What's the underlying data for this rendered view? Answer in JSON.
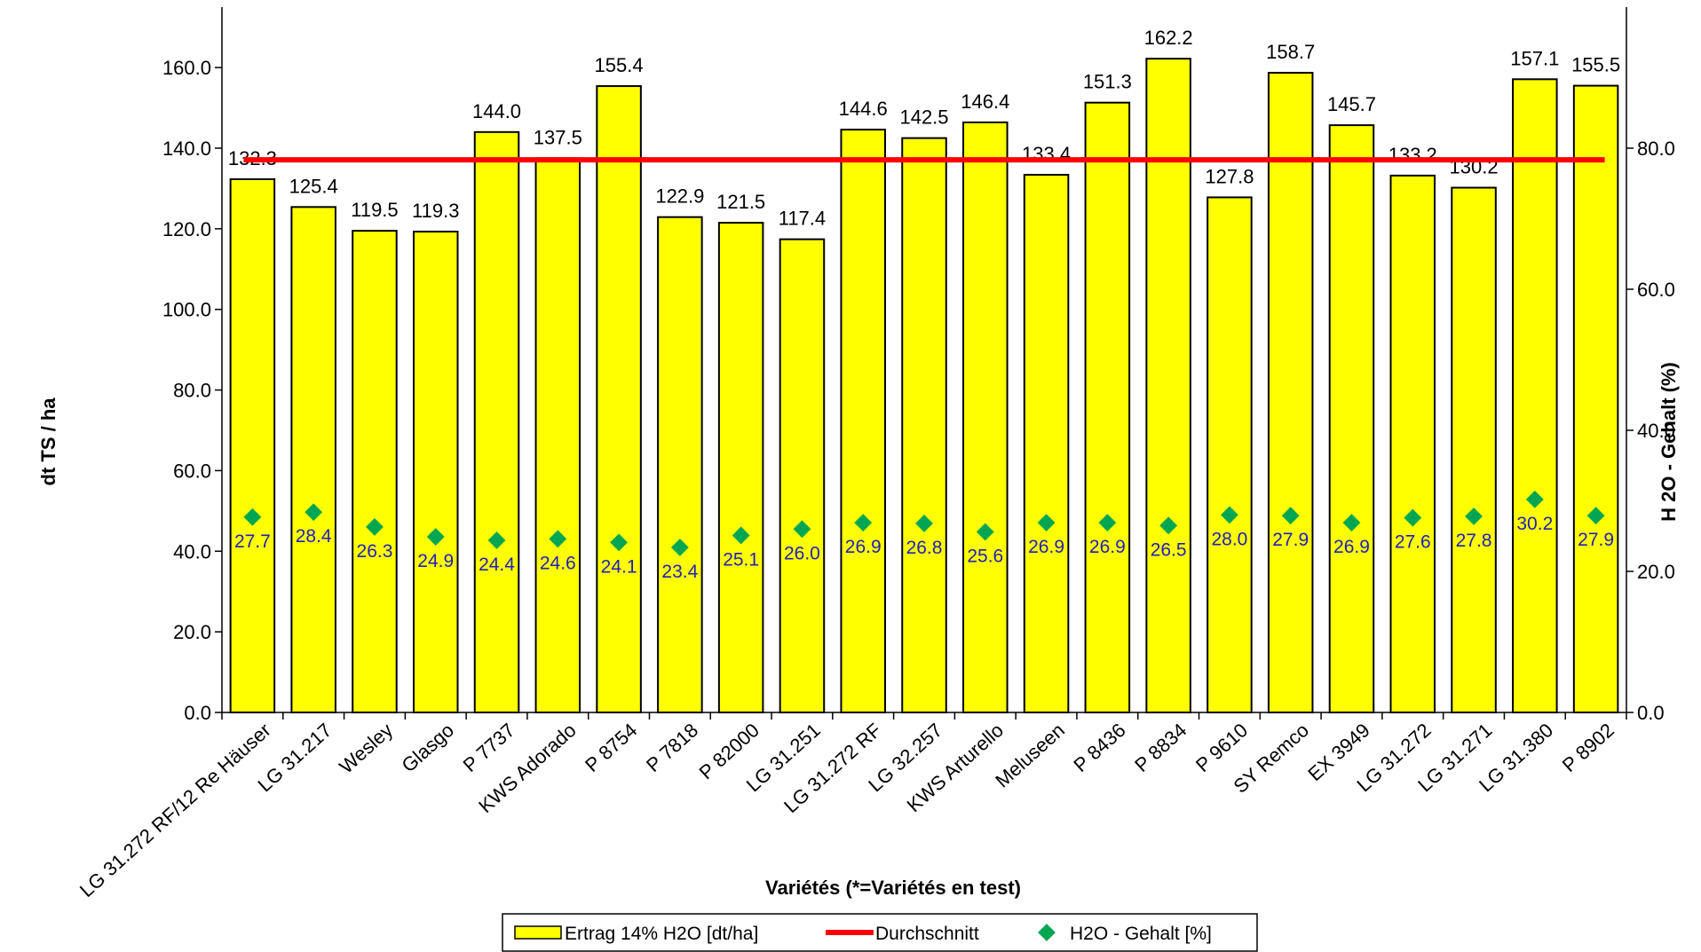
{
  "chart_data": {
    "type": "bar",
    "title": "",
    "xlabel": "Variétés (*=Variétés en test)",
    "ylabel": "dt TS / ha",
    "y2label": "H 2O - Gehalt (%)",
    "ylim": [
      0,
      175
    ],
    "y_ticks": [
      "0.0",
      "20.0",
      "40.0",
      "60.0",
      "80.0",
      "100.0",
      "120.0",
      "140.0",
      "160.0"
    ],
    "y2lim": [
      0,
      100
    ],
    "y2_ticks": [
      "0.0",
      "20.0",
      "40.0",
      "60.0",
      "80.0"
    ],
    "grid": false,
    "legend_position": "bottom",
    "categories": [
      "LG 31.272 RF/12 Re Häuser",
      "LG 31.217",
      "Wesley",
      "Glasgo",
      "P 7737",
      "KWS Adorado",
      "P 8754",
      "P 7818",
      "P 82000",
      "LG 31.251",
      "LG 31.272 RF",
      "LG 32.257",
      "KWS Arturello",
      "Meluseen",
      "P 8436",
      "P 8834",
      "P 9610",
      "SY Remco",
      "EX 3949",
      "LG 31.272",
      "LG 31.271",
      "LG 31.380",
      "P 8902"
    ],
    "series": [
      {
        "name": "Ertrag 14% H2O [dt/ha]",
        "type": "bar",
        "axis": "left",
        "color": "#ffff00",
        "values": [
          132.3,
          125.4,
          119.5,
          119.3,
          144.0,
          137.5,
          155.4,
          122.9,
          121.5,
          117.4,
          144.6,
          142.5,
          146.4,
          133.4,
          151.3,
          162.2,
          127.8,
          158.7,
          145.7,
          133.2,
          130.2,
          157.1,
          155.5
        ],
        "labels": [
          "132.3",
          "125.4",
          "119.5",
          "119.3",
          "144.0",
          "137.5",
          "155.4",
          "122.9",
          "121.5",
          "117.4",
          "144.6",
          "142.5",
          "146.4",
          "133.4",
          "151.3",
          "162.2",
          "127.8",
          "158.7",
          "145.7",
          "133.2",
          "130.2",
          "157.1",
          "155.5"
        ]
      },
      {
        "name": "Durchschnitt",
        "type": "line",
        "axis": "left",
        "color": "#ff0000",
        "value": 137.1
      },
      {
        "name": "H2O - Gehalt [%]",
        "type": "scatter",
        "axis": "right",
        "color": "#00a651",
        "values": [
          27.7,
          28.4,
          26.3,
          24.9,
          24.4,
          24.6,
          24.1,
          23.4,
          25.1,
          26.0,
          26.9,
          26.8,
          25.6,
          26.9,
          26.9,
          26.5,
          28.0,
          27.9,
          26.9,
          27.6,
          27.8,
          30.2,
          27.9
        ],
        "labels": [
          "27.7",
          "28.4",
          "26.3",
          "24.9",
          "24.4",
          "24.6",
          "24.1",
          "23.4",
          "25.1",
          "26.0",
          "26.9",
          "26.8",
          "25.6",
          "26.9",
          "26.9",
          "26.5",
          "28.0",
          "27.9",
          "26.9",
          "27.6",
          "27.8",
          "30.2",
          "27.9"
        ]
      }
    ],
    "label_color": "#1f1fbf"
  }
}
